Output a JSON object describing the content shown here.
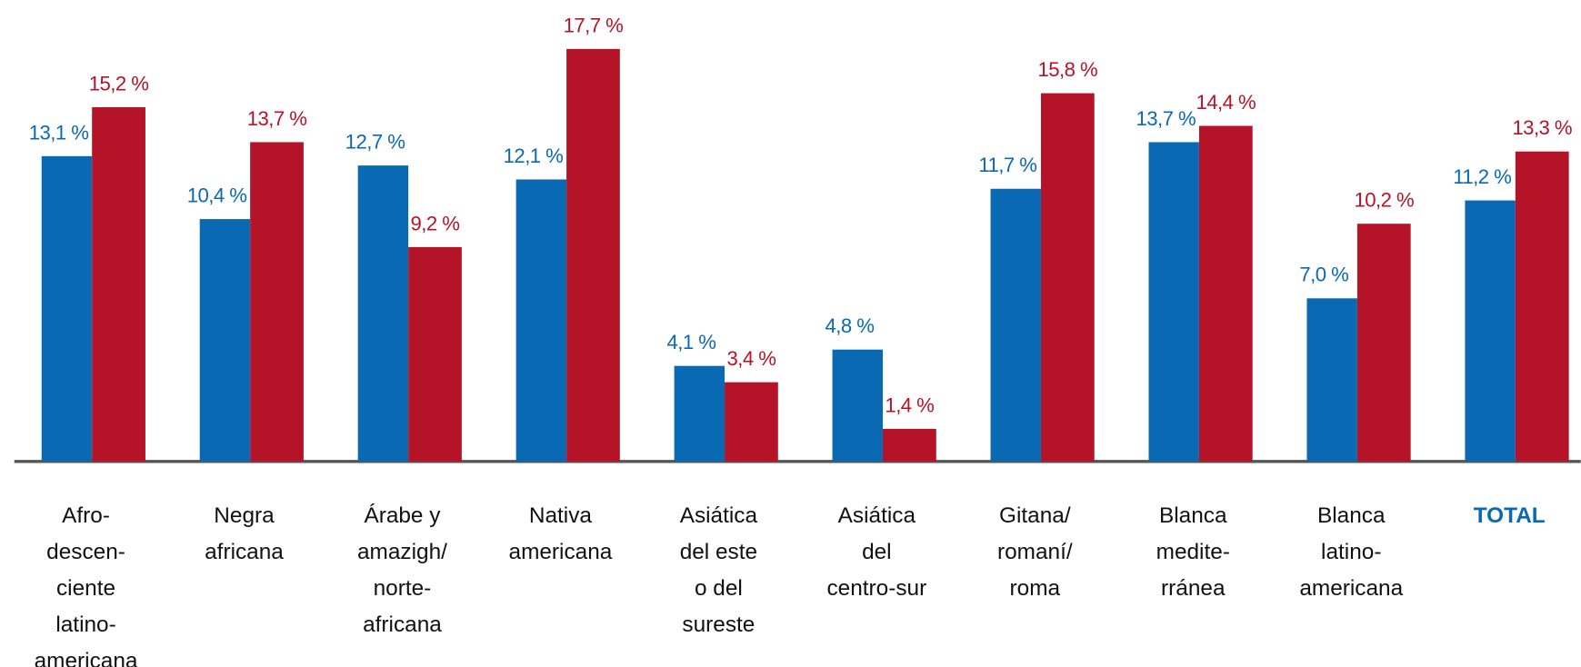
{
  "chart_data": {
    "type": "bar",
    "categories": [
      [
        "Afro-",
        "descen-",
        "ciente",
        "latino-",
        "americana"
      ],
      [
        "Negra",
        "africana"
      ],
      [
        "Árabe y",
        "amazigh/",
        "norte-",
        "africana"
      ],
      [
        "Nativa",
        "americana"
      ],
      [
        "Asiática",
        "del este",
        "o del",
        "sureste"
      ],
      [
        "Asiática",
        "del",
        "centro-sur"
      ],
      [
        "Gitana/",
        "romaní/",
        "roma"
      ],
      [
        "Blanca",
        "medite-",
        "rránea"
      ],
      [
        "Blanca",
        "latino-",
        "americana"
      ],
      [
        "TOTAL"
      ]
    ],
    "series": [
      {
        "color": "#0a69b3",
        "values": [
          13.1,
          10.4,
          12.7,
          12.1,
          4.1,
          4.8,
          11.7,
          13.7,
          7.0,
          11.2
        ],
        "value_labels": [
          "13,1 %",
          "10,4 %",
          "12,7 %",
          "12,1 %",
          "4,1 %",
          "4,8 %",
          "11,7 %",
          "13,7 %",
          "7,0 %",
          "11,2 %"
        ]
      },
      {
        "color": "#b51428",
        "values": [
          15.2,
          13.7,
          9.2,
          17.7,
          3.4,
          1.4,
          15.8,
          14.4,
          10.2,
          13.3
        ],
        "value_labels": [
          "15,2 %",
          "13,7 %",
          "9,2 %",
          "17,7 %",
          "3,4 %",
          "1,4 %",
          "15,8 %",
          "14,4 %",
          "10,2 %",
          "13,3 %"
        ]
      }
    ],
    "ylim": [
      0,
      19.8
    ]
  }
}
